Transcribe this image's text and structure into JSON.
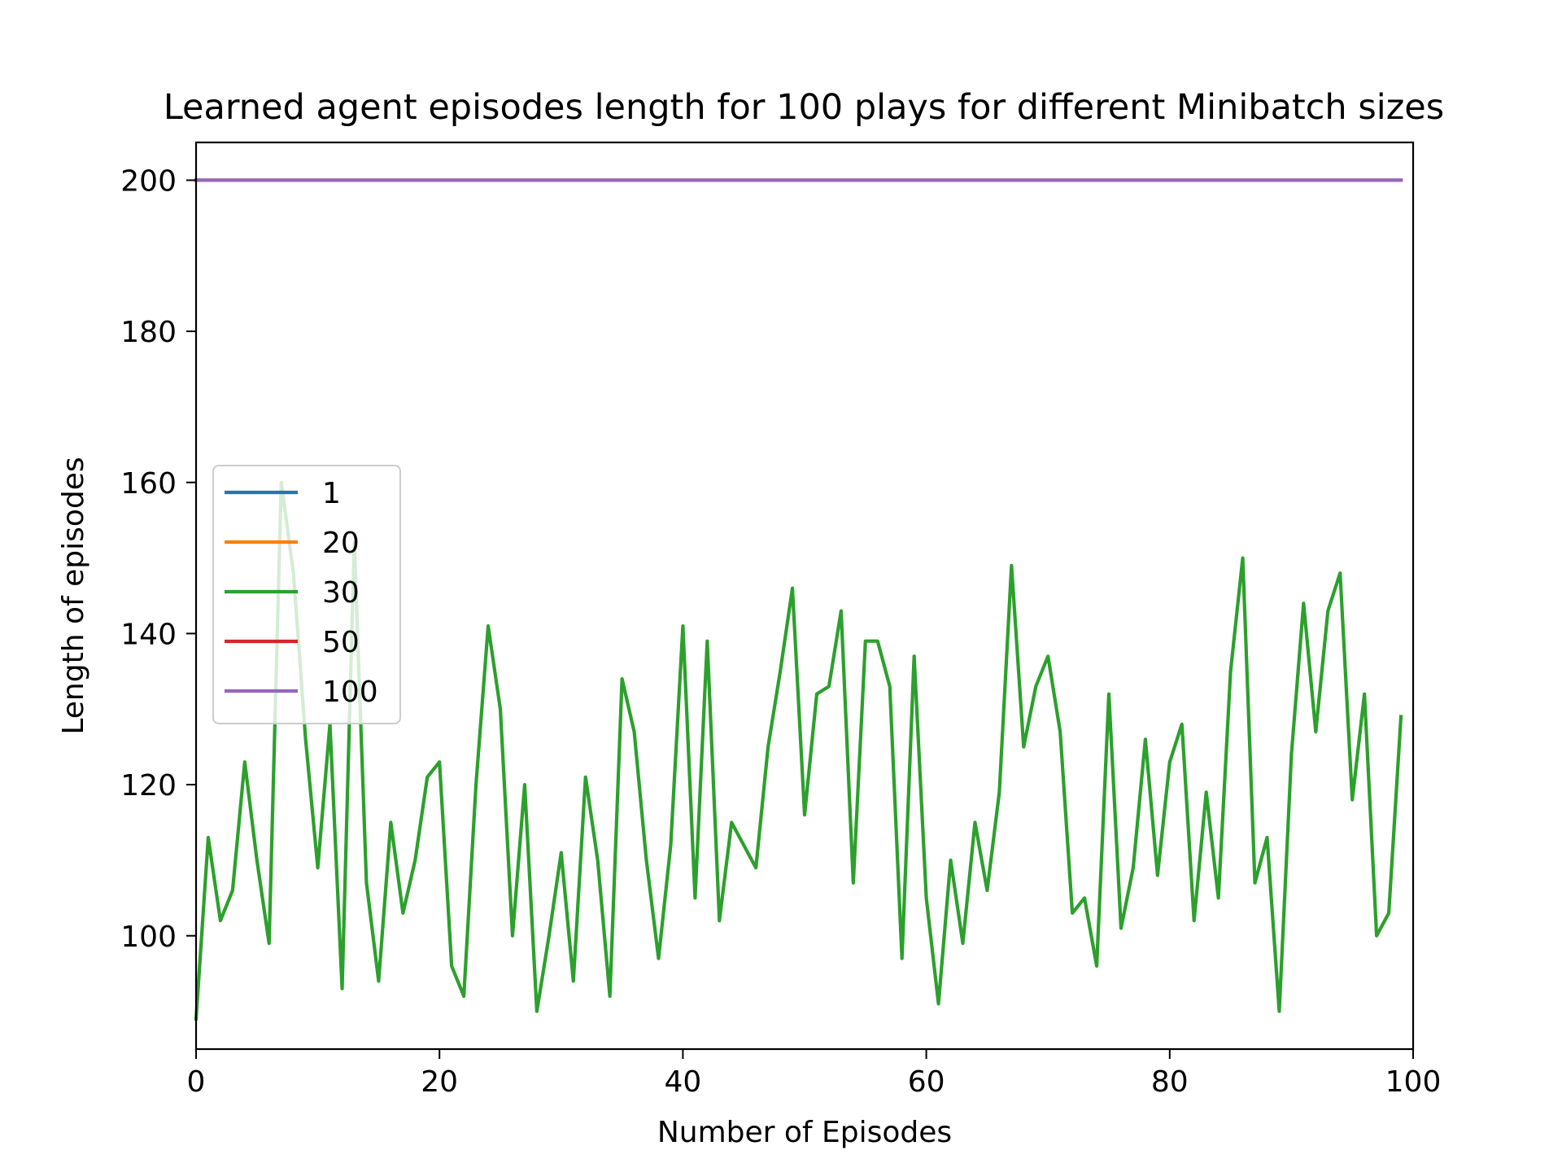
{
  "chart_data": {
    "type": "line",
    "title": "Learned agent episodes length for 100 plays for different Minibatch sizes",
    "xlabel": "Number of Episodes",
    "ylabel": "Length of episodes",
    "xlim": [
      0,
      100
    ],
    "ylim": [
      85,
      205
    ],
    "xticks": [
      0,
      20,
      40,
      60,
      80,
      100
    ],
    "yticks": [
      100,
      120,
      140,
      160,
      180,
      200
    ],
    "grid": false,
    "legend_position": "center-left",
    "series": [
      {
        "name": "1",
        "color": "#1f77b4",
        "values": [
          200,
          200,
          200,
          200,
          200,
          200,
          200,
          200,
          200,
          200,
          200,
          200,
          200,
          200,
          200,
          200,
          200,
          200,
          200,
          200,
          200,
          200,
          200,
          200,
          200,
          200,
          200,
          200,
          200,
          200,
          200,
          200,
          200,
          200,
          200,
          200,
          200,
          200,
          200,
          200,
          200,
          200,
          200,
          200,
          200,
          200,
          200,
          200,
          200,
          200,
          200,
          200,
          200,
          200,
          200,
          200,
          200,
          200,
          200,
          200,
          200,
          200,
          200,
          200,
          200,
          200,
          200,
          200,
          200,
          200,
          200,
          200,
          200,
          200,
          200,
          200,
          200,
          200,
          200,
          200,
          200,
          200,
          200,
          200,
          200,
          200,
          200,
          200,
          200,
          200,
          200,
          200,
          200,
          200,
          200,
          200,
          200,
          200,
          200,
          200
        ]
      },
      {
        "name": "20",
        "color": "#ff7f0e",
        "values": [
          200,
          200,
          200,
          200,
          200,
          200,
          200,
          200,
          200,
          200,
          200,
          200,
          200,
          200,
          200,
          200,
          200,
          200,
          200,
          200,
          200,
          200,
          200,
          200,
          200,
          200,
          200,
          200,
          200,
          200,
          200,
          200,
          200,
          200,
          200,
          200,
          200,
          200,
          200,
          200,
          200,
          200,
          200,
          200,
          200,
          200,
          200,
          200,
          200,
          200,
          200,
          200,
          200,
          200,
          200,
          200,
          200,
          200,
          200,
          200,
          200,
          200,
          200,
          200,
          200,
          200,
          200,
          200,
          200,
          200,
          200,
          200,
          200,
          200,
          200,
          200,
          200,
          200,
          200,
          200,
          200,
          200,
          200,
          200,
          200,
          200,
          200,
          200,
          200,
          200,
          200,
          200,
          200,
          200,
          200,
          200,
          200,
          200,
          200,
          200
        ]
      },
      {
        "name": "30",
        "color": "#2ca02c",
        "values": [
          89,
          113,
          102,
          106,
          123,
          110,
          99,
          160,
          148,
          126,
          109,
          128,
          93,
          152,
          107,
          94,
          115,
          103,
          110,
          121,
          123,
          96,
          92,
          120,
          141,
          130,
          100,
          120,
          90,
          100,
          111,
          94,
          121,
          110,
          92,
          134,
          127,
          110,
          97,
          112,
          141,
          105,
          139,
          102,
          115,
          112,
          109,
          125,
          135,
          146,
          116,
          132,
          133,
          143,
          107,
          139,
          139,
          133,
          97,
          137,
          105,
          91,
          110,
          99,
          115,
          106,
          119,
          149,
          125,
          133,
          137,
          127,
          103,
          105,
          96,
          132,
          101,
          109,
          126,
          108,
          123,
          128,
          102,
          119,
          105,
          135,
          150,
          107,
          113,
          90,
          124,
          144,
          127,
          143,
          148,
          118,
          132,
          100,
          103,
          129
        ]
      },
      {
        "name": "50",
        "color": "#d62728",
        "values": [
          200,
          200,
          200,
          200,
          200,
          200,
          200,
          200,
          200,
          200,
          200,
          200,
          200,
          200,
          200,
          200,
          200,
          200,
          200,
          200,
          200,
          200,
          200,
          200,
          200,
          200,
          200,
          200,
          200,
          200,
          200,
          200,
          200,
          200,
          200,
          200,
          200,
          200,
          200,
          200,
          200,
          200,
          200,
          200,
          200,
          200,
          200,
          200,
          200,
          200,
          200,
          200,
          200,
          200,
          200,
          200,
          200,
          200,
          200,
          200,
          200,
          200,
          200,
          200,
          200,
          200,
          200,
          200,
          200,
          200,
          200,
          200,
          200,
          200,
          200,
          200,
          200,
          200,
          200,
          200,
          200,
          200,
          200,
          200,
          200,
          200,
          200,
          200,
          200,
          200,
          200,
          200,
          200,
          200,
          200,
          200,
          200,
          200,
          200,
          200
        ]
      },
      {
        "name": "100",
        "color": "#9467bd",
        "values": [
          200,
          200,
          200,
          200,
          200,
          200,
          200,
          200,
          200,
          200,
          200,
          200,
          200,
          200,
          200,
          200,
          200,
          200,
          200,
          200,
          200,
          200,
          200,
          200,
          200,
          200,
          200,
          200,
          200,
          200,
          200,
          200,
          200,
          200,
          200,
          200,
          200,
          200,
          200,
          200,
          200,
          200,
          200,
          200,
          200,
          200,
          200,
          200,
          200,
          200,
          200,
          200,
          200,
          200,
          200,
          200,
          200,
          200,
          200,
          200,
          200,
          200,
          200,
          200,
          200,
          200,
          200,
          200,
          200,
          200,
          200,
          200,
          200,
          200,
          200,
          200,
          200,
          200,
          200,
          200,
          200,
          200,
          200,
          200,
          200,
          200,
          200,
          200,
          200,
          200,
          200,
          200,
          200,
          200,
          200,
          200,
          200,
          200,
          200,
          200
        ]
      }
    ]
  }
}
